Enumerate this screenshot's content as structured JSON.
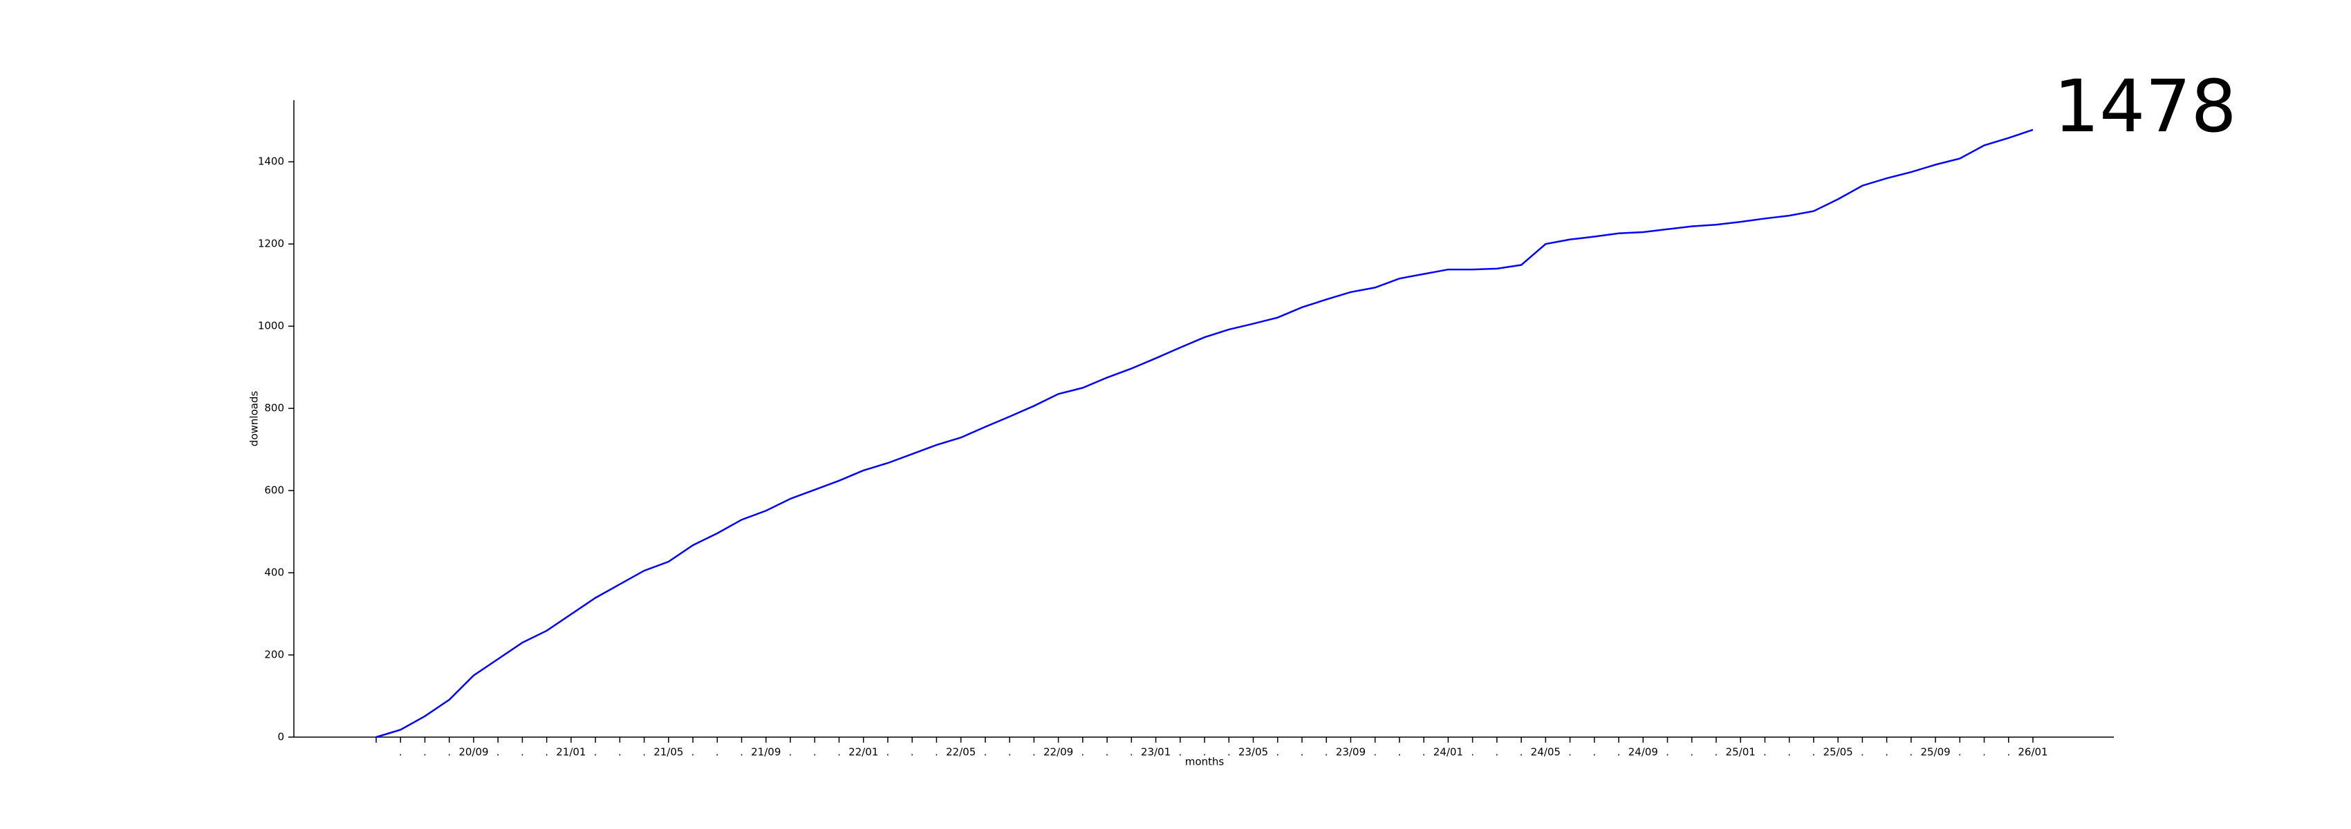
{
  "chart_data": {
    "type": "line",
    "x_label": "months",
    "y_label": "downloads",
    "annotation": "1478",
    "categories": [
      null,
      ".",
      ".",
      ".",
      "20/09",
      ".",
      ".",
      ".",
      "21/01",
      ".",
      ".",
      ".",
      "21/05",
      ".",
      ".",
      ".",
      "21/09",
      ".",
      ".",
      ".",
      "22/01",
      ".",
      ".",
      ".",
      "22/05",
      ".",
      ".",
      ".",
      "22/09",
      ".",
      ".",
      ".",
      "23/01",
      ".",
      ".",
      ".",
      "23/05",
      ".",
      ".",
      ".",
      "23/09",
      ".",
      ".",
      ".",
      "24/01",
      ".",
      ".",
      ".",
      "24/05",
      ".",
      ".",
      ".",
      "24/09",
      ".",
      ".",
      ".",
      "25/01",
      ".",
      ".",
      ".",
      "25/05",
      ".",
      ".",
      ".",
      "25/09",
      ".",
      ".",
      ".",
      "26/01"
    ],
    "values": [
      0,
      18,
      51,
      91,
      150,
      190,
      230,
      259,
      299,
      339,
      372,
      405,
      427,
      467,
      496,
      529,
      551,
      580,
      602,
      624,
      649,
      667,
      689,
      711,
      729,
      755,
      780,
      806,
      835,
      850,
      875,
      897,
      922,
      948,
      973,
      992,
      1006,
      1021,
      1046,
      1065,
      1083,
      1094,
      1116,
      1127,
      1138,
      1138,
      1140,
      1149,
      1200,
      1211,
      1218,
      1226,
      1229,
      1236,
      1243,
      1247,
      1254,
      1262,
      1269,
      1280,
      1309,
      1342,
      1360,
      1375,
      1393,
      1408,
      1440,
      1458,
      1478
    ],
    "color": "#0000ff",
    "ylim": [
      0,
      1550
    ],
    "yticks": [
      0,
      200,
      400,
      600,
      800,
      1000,
      1200,
      1400
    ],
    "grid": false
  }
}
